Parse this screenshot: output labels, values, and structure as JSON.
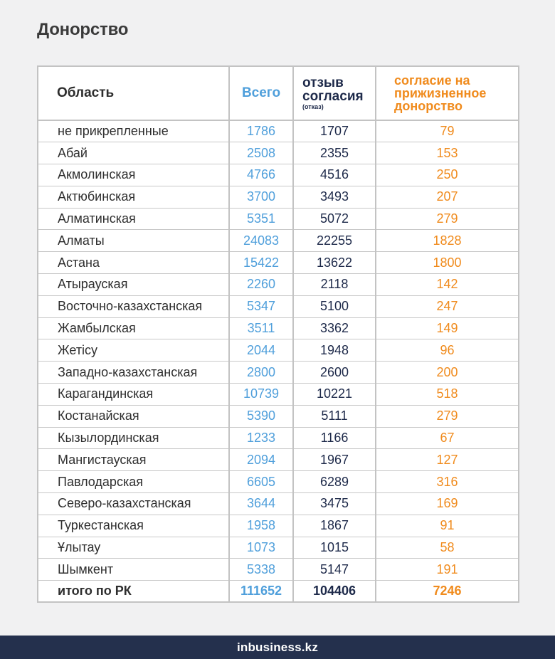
{
  "page": {
    "title": "Донорство"
  },
  "colors": {
    "total": "#4f9fdb",
    "refusal": "#1e2a4a",
    "consent": "#f08b1d",
    "footer_bg": "#24304d"
  },
  "table": {
    "headers": {
      "region": "Область",
      "total": "Всего",
      "refusal_line1": "отзыв",
      "refusal_line2": "согласия",
      "refusal_sub": "(отказ)",
      "consent_line1": "согласие на",
      "consent_line2": "прижизненное",
      "consent_line3": "донорство"
    },
    "total_row": {
      "region": "итого по РК",
      "total": "111652",
      "refusal": "104406",
      "consent": "7246"
    }
  },
  "chart_data": {
    "type": "table",
    "title": "Донорство",
    "columns": [
      "Область",
      "Всего",
      "отзыв согласия (отказ)",
      "согласие на прижизненное донорство"
    ],
    "rows": [
      {
        "region": "не прикрепленные",
        "total": 1786,
        "refusal": 1707,
        "consent": 79
      },
      {
        "region": "Абай",
        "total": 2508,
        "refusal": 2355,
        "consent": 153
      },
      {
        "region": "Акмолинская",
        "total": 4766,
        "refusal": 4516,
        "consent": 250
      },
      {
        "region": "Актюбинская",
        "total": 3700,
        "refusal": 3493,
        "consent": 207
      },
      {
        "region": "Алматинская",
        "total": 5351,
        "refusal": 5072,
        "consent": 279
      },
      {
        "region": "Алматы",
        "total": 24083,
        "refusal": 22255,
        "consent": 1828
      },
      {
        "region": "Астана",
        "total": 15422,
        "refusal": 13622,
        "consent": 1800
      },
      {
        "region": "Атырауская",
        "total": 2260,
        "refusal": 2118,
        "consent": 142
      },
      {
        "region": "Восточно-казахстанская",
        "total": 5347,
        "refusal": 5100,
        "consent": 247
      },
      {
        "region": "Жамбылская",
        "total": 3511,
        "refusal": 3362,
        "consent": 149
      },
      {
        "region": "Жетісу",
        "total": 2044,
        "refusal": 1948,
        "consent": 96
      },
      {
        "region": "Западно-казахстанская",
        "total": 2800,
        "refusal": 2600,
        "consent": 200
      },
      {
        "region": "Карагандинская",
        "total": 10739,
        "refusal": 10221,
        "consent": 518
      },
      {
        "region": "Костанайская",
        "total": 5390,
        "refusal": 5111,
        "consent": 279
      },
      {
        "region": "Кызылординская",
        "total": 1233,
        "refusal": 1166,
        "consent": 67
      },
      {
        "region": "Мангистауская",
        "total": 2094,
        "refusal": 1967,
        "consent": 127
      },
      {
        "region": "Павлодарская",
        "total": 6605,
        "refusal": 6289,
        "consent": 316
      },
      {
        "region": "Северо-казахстанская",
        "total": 3644,
        "refusal": 3475,
        "consent": 169
      },
      {
        "region": "Туркестанская",
        "total": 1958,
        "refusal": 1867,
        "consent": 91
      },
      {
        "region": "Ұлытау",
        "total": 1073,
        "refusal": 1015,
        "consent": 58
      },
      {
        "region": "Шымкент",
        "total": 5338,
        "refusal": 5147,
        "consent": 191
      }
    ]
  },
  "footer": {
    "logo_prefix": "in",
    "logo_rest": "business.kz"
  }
}
